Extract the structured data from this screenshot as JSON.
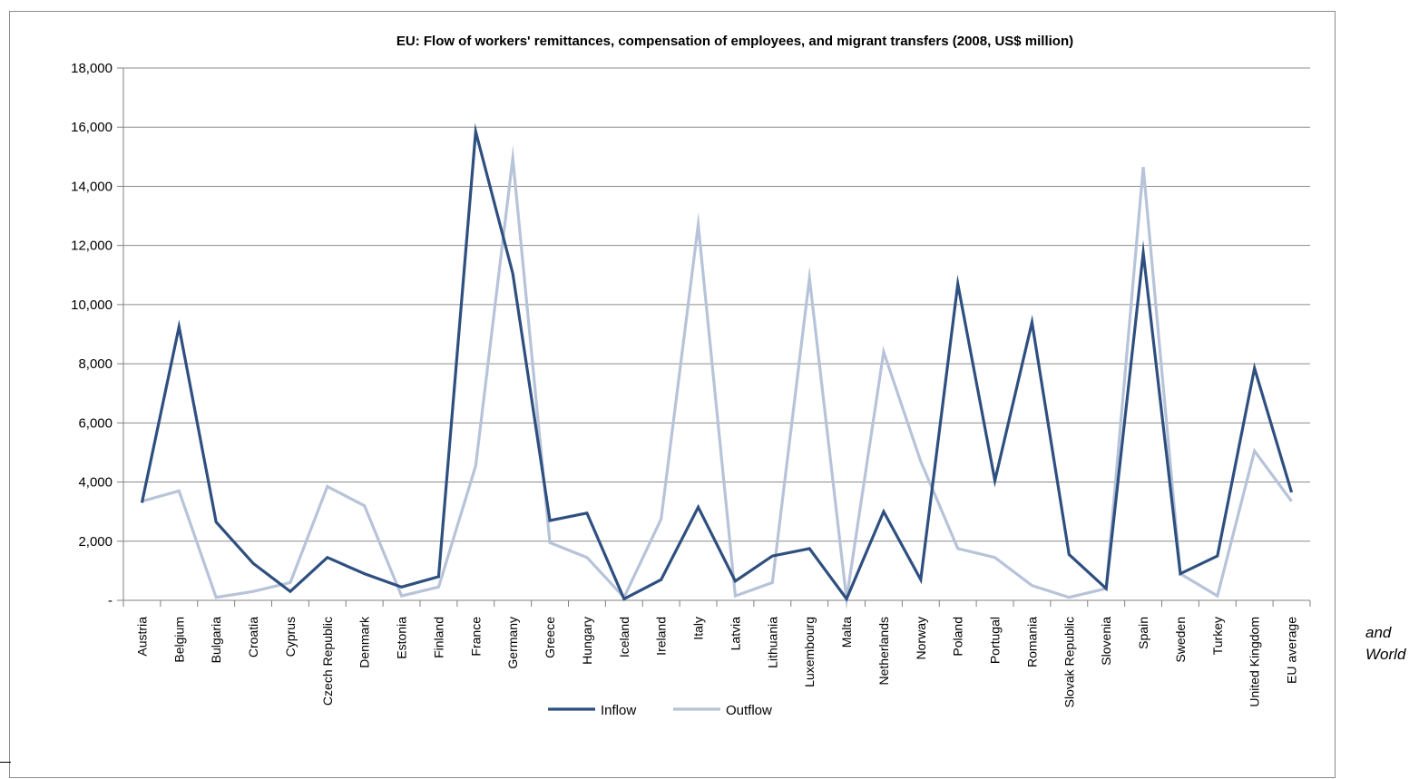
{
  "chart_data": {
    "type": "line",
    "title": "EU: Flow of workers' remittances, compensation of employees, and migrant transfers (2008,  US$ million)",
    "xlabel": "",
    "ylabel": "",
    "ylim": [
      0,
      18000
    ],
    "yticks": [
      0,
      2000,
      4000,
      6000,
      8000,
      10000,
      12000,
      14000,
      16000,
      18000
    ],
    "ytick_labels": [
      "-",
      "2,000",
      "4,000",
      "6,000",
      "8,000",
      "10,000",
      "12,000",
      "14,000",
      "16,000",
      "18,000"
    ],
    "grid": true,
    "legend_position": "bottom",
    "categories": [
      "Austria",
      "Belgium",
      "Bulgaria",
      "Croatia",
      "Cyprus",
      "Czech Republic",
      "Denmark",
      "Estonia",
      "Finland",
      "France",
      "Germany",
      "Greece",
      "Hungary",
      "Iceland",
      "Ireland",
      "Italy",
      "Latvia",
      "Lithuania",
      "Luxembourg",
      "Malta",
      "Netherlands",
      "Norway",
      "Poland",
      "Portugal",
      "Romania",
      "Slovak Republic",
      "Slovenia",
      "Spain",
      "Sweden",
      "Turkey",
      "United Kingdom",
      "EU average"
    ],
    "series": [
      {
        "name": "Inflow",
        "color": "#2e4f7f",
        "values": [
          3300,
          9250,
          2650,
          1250,
          300,
          1450,
          900,
          450,
          800,
          15850,
          11050,
          2700,
          2950,
          50,
          700,
          3150,
          650,
          1500,
          1750,
          50,
          3000,
          700,
          10700,
          4050,
          9400,
          1550,
          400,
          11750,
          900,
          1500,
          7850,
          3650
        ]
      },
      {
        "name": "Outflow",
        "color": "#b7c3d8",
        "values": [
          3350,
          3700,
          100,
          300,
          600,
          3850,
          3200,
          150,
          450,
          4550,
          14950,
          1950,
          1450,
          100,
          2750,
          12700,
          150,
          600,
          10900,
          50,
          8400,
          4700,
          1750,
          1450,
          500,
          100,
          400,
          14650,
          900,
          150,
          5050,
          3350
        ]
      }
    ]
  },
  "side_text": {
    "line1": "and",
    "line2": "World"
  }
}
